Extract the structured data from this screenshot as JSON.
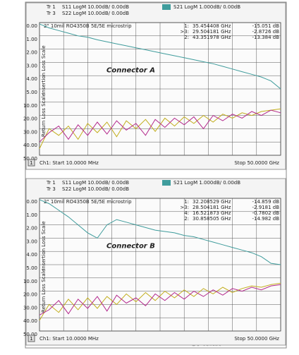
{
  "chart_data": [
    {
      "type": "line",
      "subtitle": "2\" 10mil RO4350B 5E/5E microstrip",
      "annotation": "Connector A",
      "y_title": "Insertion Loss Scale",
      "y2_title": "Return Loss Scale",
      "channel": "1",
      "start_label": "Ch1: Start 10.0000 MHz",
      "stop_label": "Stop 50.0000 GHz",
      "markers": [
        [
          "1:",
          "35.454408 GHz",
          "-15.051 dB"
        ],
        [
          ">3:",
          "29.504181 GHz",
          "-2.8726 dB"
        ],
        [
          "2:",
          "43.351978 GHz",
          "-13.384 dB"
        ]
      ],
      "x": [
        0.01,
        2,
        4,
        6,
        8,
        10,
        12,
        14,
        16,
        18,
        20,
        22,
        24,
        26,
        28,
        30,
        32,
        34,
        36,
        38,
        40,
        42,
        44,
        46,
        48,
        50
      ],
      "xlim": [
        0.01,
        50
      ],
      "ylim": [
        0,
        10
      ],
      "yticks": [
        {
          "value": 0,
          "label": "0.00"
        },
        {
          "value": 1,
          "label": "1.00"
        },
        {
          "value": 2,
          "label": "2.00"
        },
        {
          "value": 3,
          "label": "3.00"
        },
        {
          "value": 4,
          "label": "4.00"
        },
        {
          "value": 5,
          "label": "5.00"
        }
      ],
      "y2lim": [
        -50,
        50
      ],
      "y2ticks": [
        {
          "value": 10,
          "label": "10.00"
        },
        {
          "value": 20,
          "label": "20.00"
        },
        {
          "value": 30,
          "label": "30.00"
        },
        {
          "value": 40,
          "label": "40.00"
        },
        {
          "value": 50,
          "label": "50.00"
        }
      ],
      "series": [
        {
          "trace": "Tr 1",
          "name": "S11 LogM 10.00dB/  0.00dB",
          "color": "#c2ad1c",
          "axis": "y2",
          "values": [
            45,
            30,
            35,
            28,
            38,
            26,
            33,
            25,
            36,
            24,
            30,
            23,
            32,
            22,
            28,
            21,
            26,
            20,
            25,
            19,
            22,
            18,
            20,
            17,
            16,
            15
          ]
        },
        {
          "trace": "Tr 3",
          "name": "S22 LogM 10.00dB/  0.00dB",
          "color": "#b3288c",
          "axis": "y2",
          "values": [
            40,
            33,
            28,
            38,
            27,
            35,
            25,
            34,
            24,
            31,
            26,
            35,
            23,
            29,
            22,
            27,
            21,
            30,
            20,
            24,
            19,
            22,
            17,
            20,
            16,
            18
          ]
        },
        {
          "name": "S21 LogM 1.000dB/  0.00dB",
          "color": "#3f9c9c",
          "values": [
            0.1,
            0.4,
            0.6,
            0.8,
            1.0,
            1.1,
            1.3,
            1.45,
            1.6,
            1.75,
            1.9,
            2.05,
            2.2,
            2.35,
            2.5,
            2.65,
            2.8,
            2.95,
            3.1,
            3.3,
            3.5,
            3.7,
            3.9,
            4.1,
            4.4,
            5.0
          ]
        }
      ]
    },
    {
      "type": "line",
      "subtitle": "2\" 10mil RO4350B 5E/5E microstrip",
      "annotation": "Connector B",
      "y_title": "Insertion Loss Scale",
      "y2_title": "Return Loss Scale",
      "channel": "1",
      "start_label": "Ch1: Start 10.0000 MHz",
      "stop_label": "Stop 50.0000 GHz",
      "markers": [
        [
          "1:",
          "32.208529 GHz",
          "-14.859 dB"
        ],
        [
          ">3:",
          "28.504181 GHz",
          "-2.9181 dB"
        ],
        [
          "4:",
          "16.521873 GHz",
          "-0.7802 dB"
        ],
        [
          "2:",
          "30.858505 GHz",
          "-14.982 dB"
        ]
      ],
      "x": [
        0.01,
        2,
        4,
        6,
        8,
        10,
        12,
        14,
        16,
        18,
        20,
        22,
        24,
        26,
        28,
        30,
        32,
        34,
        36,
        38,
        40,
        42,
        44,
        46,
        48,
        50
      ],
      "xlim": [
        0.01,
        50
      ],
      "ylim": [
        0,
        10
      ],
      "yticks": [
        {
          "value": 0,
          "label": "0.00"
        },
        {
          "value": 1,
          "label": "1.00"
        },
        {
          "value": 2,
          "label": "2.00"
        },
        {
          "value": 3,
          "label": "3.00"
        },
        {
          "value": 4,
          "label": "4.00"
        },
        {
          "value": 5,
          "label": "5.00"
        }
      ],
      "y2lim": [
        -50,
        50
      ],
      "y2ticks": [
        {
          "value": 10,
          "label": "10.00"
        },
        {
          "value": 20,
          "label": "20.00"
        },
        {
          "value": 30,
          "label": "30.00"
        },
        {
          "value": 40,
          "label": "40.00"
        },
        {
          "value": 50,
          "label": "50.00"
        }
      ],
      "series": [
        {
          "trace": "Tr 1",
          "name": "S11 LogM 10.00dB/  0.00dB",
          "color": "#c2ad1c",
          "axis": "y2",
          "values": [
            42,
            30,
            36,
            26,
            34,
            25,
            33,
            24,
            30,
            22,
            28,
            21,
            27,
            20,
            25,
            19,
            24,
            18,
            22,
            17,
            21,
            18,
            16,
            17,
            15,
            14
          ]
        },
        {
          "trace": "Tr 3",
          "name": "S22 LogM 10.00dB/  0.00dB",
          "color": "#b3288c",
          "axis": "y2",
          "values": [
            38,
            34,
            27,
            37,
            26,
            33,
            24,
            35,
            23,
            29,
            25,
            31,
            22,
            27,
            21,
            26,
            20,
            24,
            19,
            23,
            18,
            20,
            17,
            19,
            16,
            15
          ]
        },
        {
          "name": "S21 LogM 1.000dB/  0.00dB",
          "color": "#3f9c9c",
          "values": [
            0.1,
            0.4,
            0.9,
            1.4,
            2.0,
            2.6,
            3.0,
            2.0,
            1.6,
            1.8,
            2.0,
            2.2,
            2.4,
            2.5,
            2.6,
            2.8,
            2.9,
            3.1,
            3.3,
            3.5,
            3.7,
            3.9,
            4.1,
            4.4,
            4.9,
            5.0
          ]
        }
      ]
    }
  ],
  "watermark": "电子发烧友 www.elecfans.com"
}
